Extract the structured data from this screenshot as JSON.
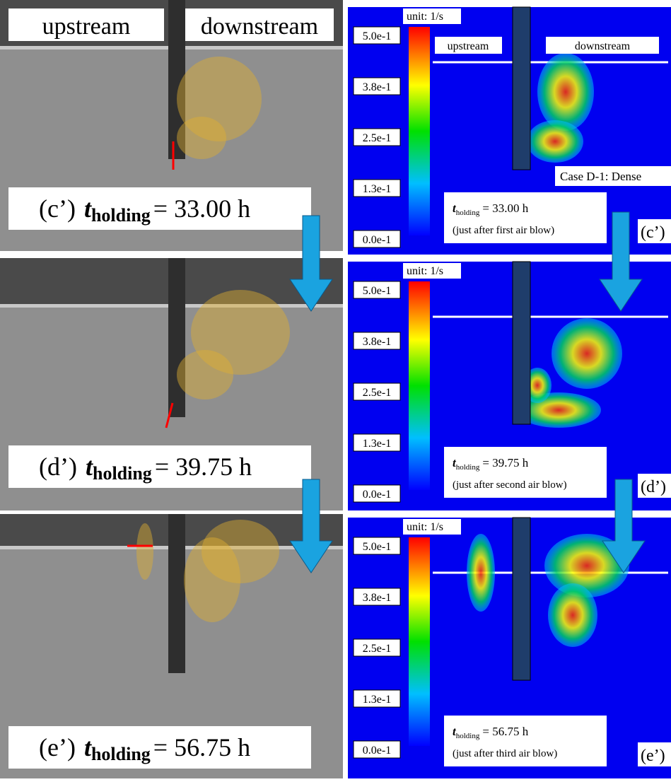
{
  "left_header": {
    "upstream": "upstream",
    "downstream": "downstream"
  },
  "left_panels": [
    {
      "label": "(c’)",
      "t": "t",
      "sub": "holding",
      "value": "= 33.00 h"
    },
    {
      "label": "(d’)",
      "t": "t",
      "sub": "holding",
      "value": "= 39.75 h"
    },
    {
      "label": "(e’)",
      "t": "t",
      "sub": "holding",
      "value": "= 56.75 h"
    }
  ],
  "right_header": {
    "upstream": "upstream",
    "downstream": "downstream",
    "case": "Case D-1: Dense"
  },
  "right_panels": [
    {
      "unit": "unit: 1/s",
      "ticks": [
        "5.0e-1",
        "3.8e-1",
        "2.5e-1",
        "1.3e-1",
        "0.0e-1"
      ],
      "t": "t",
      "sub": "holding",
      "value": "= 33.00 h",
      "note": "(just after first air blow)",
      "label": "(c’)"
    },
    {
      "unit": "unit: 1/s",
      "ticks": [
        "5.0e-1",
        "3.8e-1",
        "2.5e-1",
        "1.3e-1",
        "0.0e-1"
      ],
      "t": "t",
      "sub": "holding",
      "value": "= 39.75 h",
      "note": "(just after second air blow)",
      "label": "(d’)"
    },
    {
      "unit": "unit: 1/s",
      "ticks": [
        "5.0e-1",
        "3.8e-1",
        "2.5e-1",
        "1.3e-1",
        "0.0e-1"
      ],
      "t": "t",
      "sub": "holding",
      "value": "= 56.75 h",
      "note": "(just after third air blow)",
      "label": "(e’)"
    }
  ]
}
